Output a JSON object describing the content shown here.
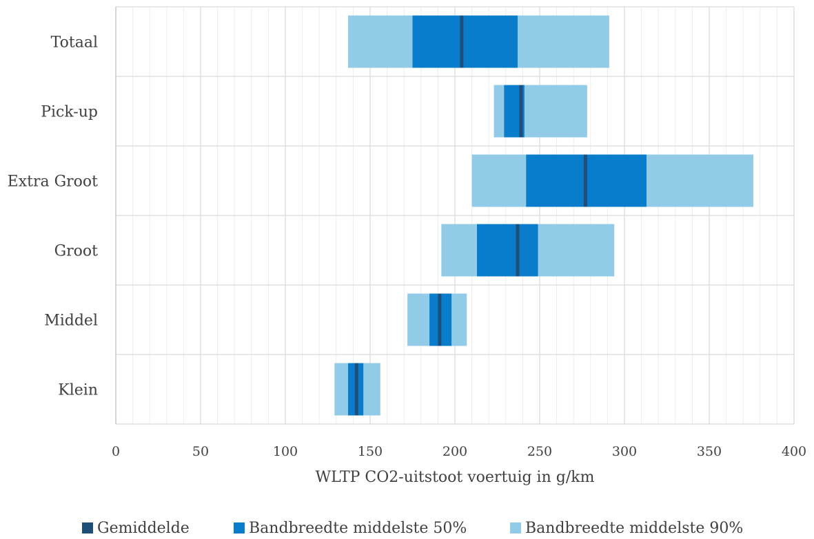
{
  "chart_data": {
    "type": "bar",
    "orientation": "horizontal",
    "stacking": "floating-range",
    "categories": [
      "Totaal",
      "Pick-up",
      "Extra Groot",
      "Groot",
      "Middel",
      "Klein"
    ],
    "series": [
      {
        "name": "Bandbreedte middelste 90%",
        "color": "#92cbe8",
        "ranges": [
          [
            137,
            291
          ],
          [
            223,
            278
          ],
          [
            210,
            376
          ],
          [
            192,
            294
          ],
          [
            172,
            207
          ],
          [
            129,
            156
          ]
        ]
      },
      {
        "name": "Bandbreedte middelste 50%",
        "color": "#0a7ccc",
        "ranges": [
          [
            175,
            237
          ],
          [
            229,
            241
          ],
          [
            242,
            313
          ],
          [
            213,
            249
          ],
          [
            185,
            198
          ],
          [
            137,
            146
          ]
        ]
      },
      {
        "name": "Gemiddelde",
        "color": "#1f4e79",
        "values": [
          204,
          239,
          277,
          237,
          191,
          142
        ]
      }
    ],
    "legend_order": [
      "Gemiddelde",
      "Bandbreedte middelste 50%",
      "Bandbreedte middelste 90%"
    ],
    "xlabel": "WLTP CO2-uitstoot voertuig in g/km",
    "ylabel": "",
    "xlim": [
      0,
      400
    ],
    "xticks": [
      0,
      50,
      100,
      150,
      200,
      250,
      300,
      350,
      400
    ],
    "minor_step": 10,
    "grid": true,
    "legend_position": "bottom"
  }
}
